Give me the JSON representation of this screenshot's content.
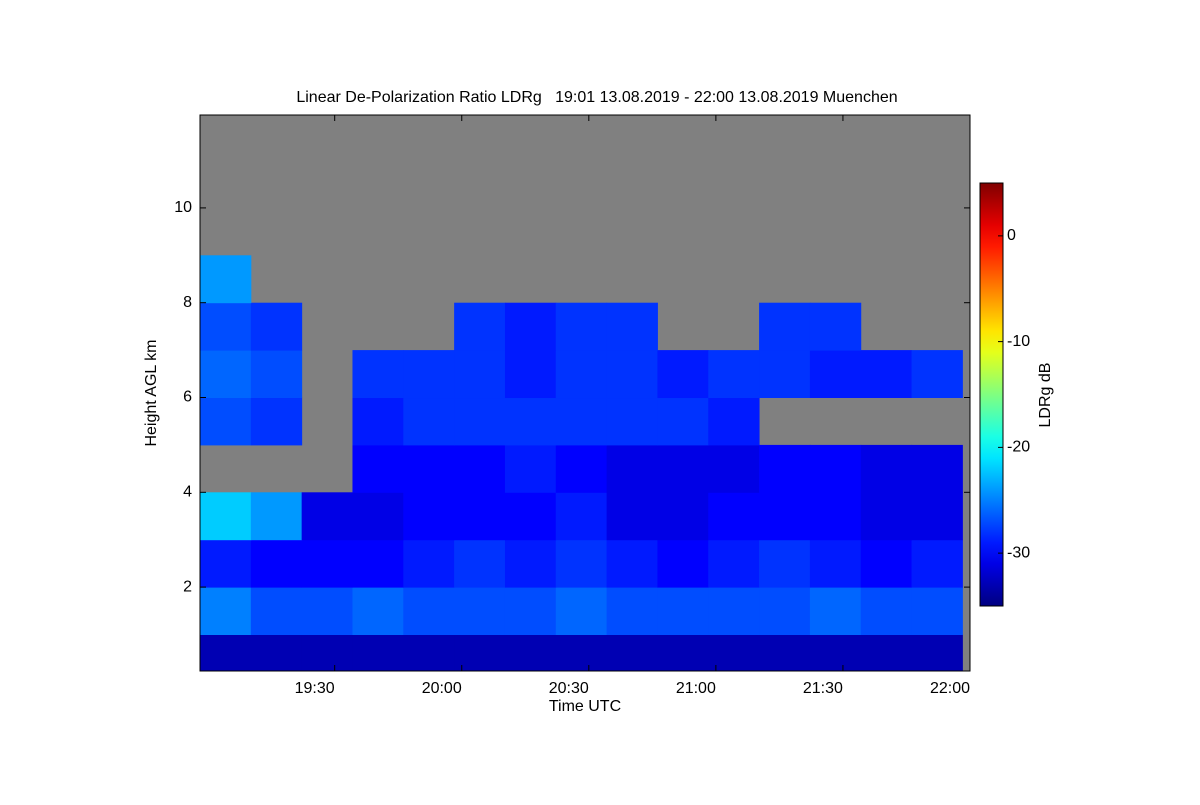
{
  "chart_data": {
    "type": "heatmap",
    "title": "Linear De-Polarization Ratio LDRg   19:01 13.08.2019 - 22:00 13.08.2019 Muenchen",
    "x_label": "Time UTC",
    "y_label": "Height AGL km",
    "colorbar_label": "LDRg dB",
    "missing_color": "#808080",
    "colormap": "jet",
    "xlim": [
      18.97,
      22.0
    ],
    "xticks": [
      {
        "value": 19.5,
        "label": "19:30"
      },
      {
        "value": 20.0,
        "label": "20:00"
      },
      {
        "value": 20.5,
        "label": "20:30"
      },
      {
        "value": 21.0,
        "label": "21:00"
      },
      {
        "value": 21.5,
        "label": "21:30"
      },
      {
        "value": 22.0,
        "label": "22:00"
      }
    ],
    "ylim": [
      0.23,
      11.96
    ],
    "yticks": [
      2,
      4,
      6,
      8,
      10
    ],
    "clim": [
      -35,
      5
    ],
    "cticks": [
      0,
      -10,
      -20,
      -30
    ],
    "x": [
      19.07,
      19.27,
      19.47,
      19.67,
      19.87,
      20.07,
      20.27,
      20.47,
      20.67,
      20.87,
      21.07,
      21.27,
      21.47,
      21.67,
      21.87
    ],
    "y": [
      0.5,
      1.5,
      2.5,
      3.5,
      4.5,
      5.5,
      6.5,
      7.5,
      8.5,
      9.5,
      10.5,
      11.5
    ],
    "values": [
      [
        -33,
        -33,
        -33,
        -33,
        -33,
        -33,
        -33,
        -33,
        -33,
        -33,
        -33,
        -33,
        -33,
        -33,
        -33
      ],
      [
        -25,
        -27,
        -27,
        -26,
        -27,
        -27,
        -27,
        -26,
        -27,
        -27,
        -27,
        -27,
        -26,
        -27,
        -27
      ],
      [
        -29,
        -30,
        -30,
        -30,
        -29,
        -28,
        -29,
        -28,
        -29,
        -30,
        -29,
        -28,
        -29,
        -30,
        -29
      ],
      [
        -22,
        -24,
        -31,
        -31,
        -30,
        -30,
        -30,
        -29,
        -31,
        -31,
        -30,
        -30,
        -30,
        -31,
        -31
      ],
      [
        null,
        null,
        null,
        -30,
        -30,
        -30,
        -29,
        -30,
        -31,
        -31,
        -31,
        -30,
        -30,
        -31,
        -31
      ],
      [
        -27,
        -28,
        null,
        -29,
        -28,
        -28,
        -28,
        -28,
        -28,
        -28,
        -29,
        null,
        null,
        null,
        null
      ],
      [
        -26,
        -27,
        null,
        -28,
        -28,
        -28,
        -29,
        -28,
        -28,
        -29,
        -28,
        -28,
        -29,
        -29,
        -28
      ],
      [
        -27,
        -28,
        null,
        null,
        null,
        -28,
        -29,
        -28,
        -28,
        null,
        null,
        -28,
        -28,
        null,
        null
      ],
      [
        -24,
        null,
        null,
        null,
        null,
        null,
        null,
        null,
        null,
        null,
        null,
        null,
        null,
        null,
        null
      ],
      [
        null,
        null,
        null,
        null,
        null,
        null,
        null,
        null,
        null,
        null,
        null,
        null,
        null,
        null,
        null
      ],
      [
        null,
        null,
        null,
        null,
        null,
        null,
        null,
        null,
        null,
        null,
        null,
        null,
        null,
        null,
        null
      ],
      [
        null,
        null,
        null,
        null,
        null,
        null,
        null,
        null,
        null,
        null,
        null,
        null,
        null,
        null,
        null
      ]
    ]
  }
}
